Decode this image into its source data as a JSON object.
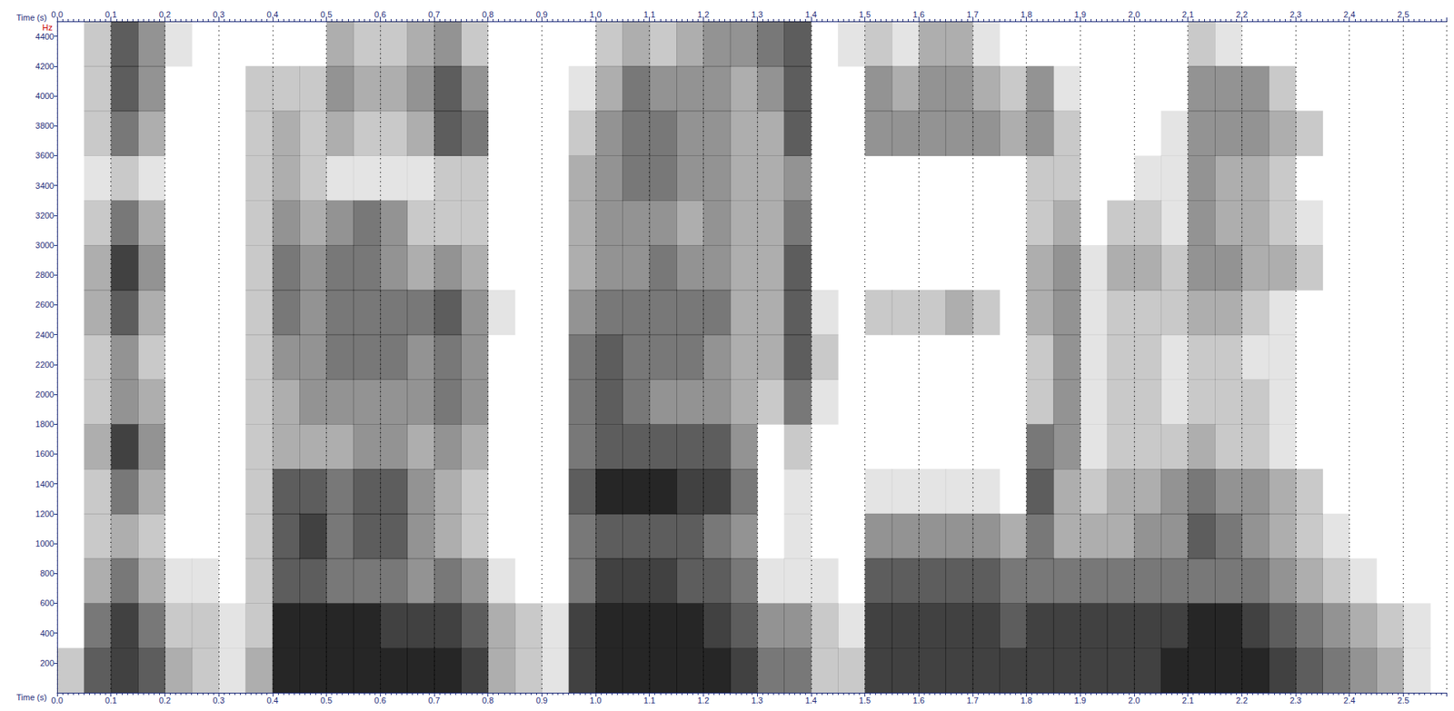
{
  "chart_data": {
    "type": "heatmap",
    "xlabel": "Time (s)",
    "ylabel": "Hz",
    "xlim": [
      0,
      2.58
    ],
    "ylim": [
      0,
      4500
    ],
    "xticks": [
      {
        "value": 0,
        "label": "0.0"
      },
      0.1,
      0.2,
      0.3,
      0.4,
      0.5,
      0.6,
      0.7,
      0.8,
      0.9,
      {
        "value": 1,
        "label": "1.0"
      },
      1.1,
      1.2,
      1.3,
      1.4,
      1.5,
      1.6,
      1.7,
      1.8,
      1.9,
      {
        "value": 2,
        "label": "2.0"
      },
      2.1,
      2.2,
      2.3,
      2.4,
      2.5
    ],
    "yticks": [
      200,
      400,
      600,
      800,
      1000,
      1200,
      1400,
      1600,
      1800,
      2000,
      2200,
      2400,
      2600,
      2800,
      3000,
      3200,
      3400,
      3600,
      3800,
      4000,
      4200,
      4400
    ],
    "grid": true,
    "color": "#000000",
    "time_bins": [
      0,
      0.05,
      0.1,
      0.15,
      0.2,
      0.25,
      0.3,
      0.35,
      0.4,
      0.45,
      0.5,
      0.55,
      0.6,
      0.65,
      0.7,
      0.75,
      0.8,
      0.85,
      0.9,
      0.95,
      1.0,
      1.05,
      1.1,
      1.15,
      1.2,
      1.25,
      1.3,
      1.35,
      1.4,
      1.45,
      1.5,
      1.55,
      1.6,
      1.65,
      1.7,
      1.75,
      1.8,
      1.85,
      1.9,
      1.95,
      2.0,
      2.05,
      2.1,
      2.15,
      2.2,
      2.25,
      2.3,
      2.35,
      2.4,
      2.45,
      2.5,
      2.55
    ],
    "freq_bins": [
      0,
      300,
      600,
      900,
      1200,
      1500,
      1800,
      2100,
      2400,
      2700,
      3000,
      3300,
      3600,
      3900,
      4200,
      4500
    ],
    "cells": [
      [
        2,
        6,
        7,
        6,
        3,
        2,
        1,
        3,
        8,
        8,
        8,
        8,
        8,
        8,
        8,
        7,
        3,
        2,
        1,
        7,
        8,
        8,
        8,
        8,
        8,
        7,
        5,
        5,
        2,
        2,
        7,
        7,
        7,
        7,
        7,
        7,
        7,
        7,
        7,
        7,
        7,
        8,
        8,
        8,
        8,
        7,
        6,
        5,
        4,
        3,
        1
      ],
      [
        0,
        5,
        7,
        5,
        2,
        2,
        1,
        2,
        8,
        8,
        8,
        8,
        7,
        7,
        7,
        6,
        3,
        2,
        1,
        7,
        8,
        8,
        8,
        8,
        7,
        6,
        4,
        4,
        2,
        1,
        7,
        7,
        7,
        7,
        7,
        6,
        7,
        7,
        7,
        7,
        7,
        7,
        8,
        8,
        7,
        6,
        5,
        4,
        3,
        2,
        1
      ],
      [
        0,
        3,
        5,
        3,
        1,
        1,
        0,
        2,
        6,
        6,
        5,
        5,
        5,
        4,
        5,
        4,
        1,
        0,
        0,
        5,
        7,
        7,
        7,
        6,
        6,
        5,
        1,
        1,
        1,
        0,
        6,
        6,
        6,
        6,
        6,
        5,
        5,
        5,
        5,
        5,
        5,
        5,
        5,
        5,
        5,
        4,
        3,
        2,
        1,
        0,
        0
      ],
      [
        0,
        2,
        3,
        2,
        0,
        0,
        0,
        2,
        6,
        7,
        5,
        6,
        6,
        4,
        3,
        2,
        0,
        0,
        0,
        5,
        6,
        6,
        6,
        6,
        5,
        4,
        0,
        1,
        0,
        0,
        4,
        4,
        4,
        4,
        4,
        3,
        5,
        3,
        3,
        3,
        4,
        4,
        6,
        5,
        4,
        3,
        2,
        1,
        0,
        0,
        0
      ],
      [
        0,
        2,
        5,
        3,
        0,
        0,
        0,
        2,
        6,
        6,
        5,
        6,
        6,
        4,
        3,
        2,
        0,
        0,
        0,
        6,
        8,
        8,
        8,
        7,
        7,
        5,
        0,
        1,
        0,
        0,
        1,
        1,
        1,
        1,
        1,
        0,
        6,
        3,
        2,
        3,
        3,
        4,
        5,
        4,
        4,
        3,
        2,
        0,
        0,
        0,
        0
      ],
      [
        0,
        3,
        7,
        4,
        0,
        0,
        0,
        2,
        3,
        3,
        3,
        4,
        4,
        3,
        4,
        3,
        0,
        0,
        0,
        5,
        6,
        6,
        6,
        6,
        6,
        4,
        0,
        2,
        0,
        0,
        0,
        0,
        0,
        0,
        0,
        0,
        5,
        4,
        1,
        2,
        2,
        2,
        3,
        2,
        2,
        1,
        0,
        0,
        0,
        0,
        0
      ],
      [
        0,
        2,
        4,
        3,
        0,
        0,
        0,
        2,
        3,
        4,
        4,
        4,
        4,
        4,
        5,
        4,
        0,
        0,
        0,
        5,
        6,
        5,
        4,
        4,
        4,
        3,
        2,
        5,
        1,
        0,
        0,
        0,
        0,
        0,
        0,
        0,
        2,
        4,
        1,
        2,
        2,
        1,
        2,
        2,
        2,
        1,
        0,
        0,
        0,
        0,
        0
      ],
      [
        0,
        2,
        4,
        2,
        0,
        0,
        0,
        2,
        4,
        4,
        5,
        5,
        5,
        4,
        5,
        4,
        0,
        0,
        0,
        5,
        6,
        5,
        5,
        5,
        4,
        3,
        3,
        6,
        2,
        0,
        0,
        0,
        0,
        0,
        0,
        0,
        2,
        4,
        1,
        2,
        2,
        1,
        2,
        2,
        1,
        1,
        0,
        0,
        0,
        0,
        0
      ],
      [
        0,
        3,
        6,
        3,
        0,
        0,
        0,
        2,
        5,
        4,
        5,
        5,
        5,
        5,
        6,
        4,
        1,
        0,
        0,
        4,
        5,
        5,
        5,
        5,
        5,
        3,
        3,
        6,
        1,
        0,
        2,
        2,
        2,
        3,
        2,
        0,
        3,
        4,
        1,
        2,
        2,
        2,
        3,
        3,
        2,
        1,
        0,
        0,
        0,
        0,
        0
      ],
      [
        0,
        3,
        7,
        4,
        0,
        0,
        0,
        2,
        5,
        4,
        5,
        5,
        4,
        3,
        4,
        3,
        0,
        0,
        0,
        3,
        4,
        4,
        5,
        4,
        4,
        3,
        3,
        6,
        0,
        0,
        0,
        0,
        0,
        0,
        0,
        0,
        3,
        4,
        1,
        3,
        3,
        2,
        4,
        4,
        3,
        3,
        2,
        0,
        0,
        0,
        0
      ],
      [
        0,
        2,
        5,
        3,
        0,
        0,
        0,
        2,
        4,
        3,
        4,
        5,
        4,
        2,
        2,
        2,
        0,
        0,
        0,
        3,
        4,
        4,
        4,
        3,
        4,
        3,
        3,
        5,
        0,
        0,
        0,
        0,
        0,
        0,
        0,
        0,
        2,
        3,
        0,
        2,
        2,
        1,
        4,
        3,
        3,
        2,
        1,
        0,
        0,
        0,
        0
      ],
      [
        0,
        1,
        2,
        1,
        0,
        0,
        0,
        2,
        3,
        2,
        1,
        1,
        1,
        1,
        2,
        2,
        0,
        0,
        0,
        3,
        4,
        5,
        5,
        4,
        4,
        3,
        3,
        4,
        0,
        0,
        0,
        0,
        0,
        0,
        0,
        0,
        2,
        2,
        0,
        0,
        1,
        1,
        4,
        3,
        3,
        2,
        0,
        0,
        0,
        0,
        0
      ],
      [
        0,
        2,
        5,
        3,
        0,
        0,
        0,
        2,
        3,
        2,
        3,
        2,
        2,
        3,
        6,
        5,
        0,
        0,
        0,
        2,
        4,
        5,
        5,
        4,
        4,
        3,
        3,
        6,
        0,
        0,
        4,
        4,
        4,
        4,
        4,
        3,
        4,
        2,
        0,
        0,
        0,
        1,
        4,
        4,
        4,
        3,
        2,
        0,
        0,
        0,
        0
      ],
      [
        0,
        2,
        6,
        4,
        0,
        0,
        0,
        2,
        2,
        2,
        4,
        3,
        3,
        4,
        6,
        4,
        0,
        0,
        0,
        1,
        3,
        5,
        4,
        4,
        4,
        3,
        4,
        6,
        0,
        0,
        4,
        3,
        4,
        4,
        3,
        2,
        4,
        1,
        0,
        0,
        0,
        0,
        4,
        4,
        4,
        2,
        0,
        0,
        0,
        0,
        0
      ],
      [
        0,
        2,
        6,
        4,
        1,
        0,
        0,
        0,
        0,
        0,
        3,
        2,
        2,
        3,
        4,
        2,
        0,
        0,
        0,
        0,
        2,
        3,
        2,
        3,
        4,
        4,
        5,
        6,
        0,
        1,
        2,
        1,
        3,
        3,
        1,
        0,
        0,
        0,
        0,
        0,
        0,
        0,
        2,
        1,
        0,
        0,
        0,
        0,
        0,
        0,
        0
      ]
    ]
  }
}
